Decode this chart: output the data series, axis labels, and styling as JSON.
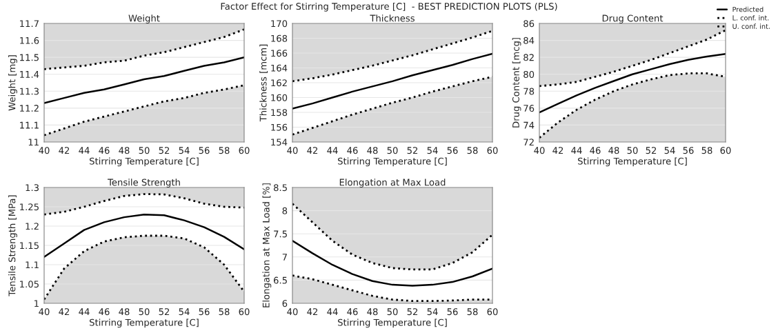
{
  "chart_data": [
    {
      "type": "line",
      "title": "Weight",
      "xlabel": "Stirring Temperature [C]",
      "ylabel": "Weight [mg]",
      "annotations": [
        "Factor Effect for Stirring Temperature [C]  - BEST PREDICTION PLOTS (PLS)"
      ],
      "legend": "top right",
      "grid": "y",
      "x": [
        40,
        42,
        44,
        46,
        48,
        50,
        52,
        54,
        56,
        58,
        60
      ],
      "xlim": [
        40,
        60
      ],
      "xticks": [
        40,
        42,
        44,
        46,
        48,
        50,
        52,
        54,
        56,
        58,
        60
      ],
      "ylim": [
        11,
        11.7
      ],
      "yticks": [
        11,
        11.1,
        11.2,
        11.3,
        11.4,
        11.5,
        11.6,
        11.7
      ],
      "series": [
        {
          "name": "Predicted",
          "color": "#000000",
          "line_style": "solid",
          "values": [
            11.23,
            11.26,
            11.29,
            11.31,
            11.34,
            11.37,
            11.39,
            11.42,
            11.45,
            11.47,
            11.5
          ],
          "lower": [
            11.04,
            11.08,
            11.12,
            11.15,
            11.18,
            11.21,
            11.24,
            11.26,
            11.29,
            11.31,
            11.335
          ],
          "upper": [
            11.43,
            11.44,
            11.45,
            11.47,
            11.48,
            11.51,
            11.53,
            11.56,
            11.59,
            11.62,
            11.665
          ]
        },
        {
          "name": "L. conf. int.",
          "color": "#000000",
          "line_style": "dotted",
          "values": [
            11.04,
            11.08,
            11.12,
            11.15,
            11.18,
            11.21,
            11.24,
            11.26,
            11.29,
            11.31,
            11.335
          ]
        },
        {
          "name": "U. conf. int.",
          "color": "#000000",
          "line_style": "dotted",
          "values": [
            11.43,
            11.44,
            11.45,
            11.47,
            11.48,
            11.51,
            11.53,
            11.56,
            11.59,
            11.62,
            11.665
          ]
        }
      ]
    },
    {
      "type": "line",
      "title": "Thickness",
      "xlabel": "Stirring Temperature [C]",
      "ylabel": "Thickness [mcm]",
      "grid": "y",
      "x": [
        40,
        42,
        44,
        46,
        48,
        50,
        52,
        54,
        56,
        58,
        60
      ],
      "xlim": [
        40,
        60
      ],
      "xticks": [
        40,
        42,
        44,
        46,
        48,
        50,
        52,
        54,
        56,
        58,
        60
      ],
      "ylim": [
        154,
        170
      ],
      "yticks": [
        154,
        156,
        158,
        160,
        162,
        164,
        166,
        168,
        170
      ],
      "series": [
        {
          "color": "#000000",
          "line_style": "solid",
          "values": [
            158.5,
            159.2,
            160.0,
            160.8,
            161.5,
            162.2,
            163.0,
            163.7,
            164.4,
            165.2,
            165.9
          ],
          "lower": [
            155.0,
            155.9,
            156.8,
            157.7,
            158.5,
            159.3,
            160.0,
            160.8,
            161.5,
            162.2,
            162.8
          ],
          "upper": [
            162.2,
            162.6,
            163.1,
            163.7,
            164.3,
            165.0,
            165.7,
            166.5,
            167.3,
            168.1,
            169.0
          ]
        },
        {
          "color": "#000000",
          "line_style": "dotted",
          "values": [
            155.0,
            155.9,
            156.8,
            157.7,
            158.5,
            159.3,
            160.0,
            160.8,
            161.5,
            162.2,
            162.8
          ]
        },
        {
          "color": "#000000",
          "line_style": "dotted",
          "values": [
            162.2,
            162.6,
            163.1,
            163.7,
            164.3,
            165.0,
            165.7,
            166.5,
            167.3,
            168.1,
            169.0
          ]
        }
      ]
    },
    {
      "type": "line",
      "title": "Drug Content",
      "xlabel": "Stirring Temperature [C]",
      "ylabel": "Drug Content [mcg]",
      "grid": "y",
      "x": [
        40,
        42,
        44,
        46,
        48,
        50,
        52,
        54,
        56,
        58,
        60
      ],
      "xlim": [
        40,
        60
      ],
      "xticks": [
        40,
        42,
        44,
        46,
        48,
        50,
        52,
        54,
        56,
        58,
        60
      ],
      "ylim": [
        72,
        86
      ],
      "yticks": [
        72,
        74,
        76,
        78,
        80,
        82,
        84,
        86
      ],
      "series": [
        {
          "color": "#000000",
          "line_style": "solid",
          "values": [
            75.5,
            76.5,
            77.5,
            78.4,
            79.2,
            80.0,
            80.6,
            81.2,
            81.7,
            82.1,
            82.4
          ],
          "lower": [
            72.5,
            74.3,
            75.8,
            77.0,
            78.0,
            78.8,
            79.4,
            79.9,
            80.1,
            80.1,
            79.7
          ],
          "upper": [
            78.6,
            78.8,
            79.1,
            79.7,
            80.3,
            81.0,
            81.7,
            82.5,
            83.3,
            84.1,
            85.2
          ]
        },
        {
          "color": "#000000",
          "line_style": "dotted",
          "values": [
            72.5,
            74.3,
            75.8,
            77.0,
            78.0,
            78.8,
            79.4,
            79.9,
            80.1,
            80.1,
            79.7
          ]
        },
        {
          "color": "#000000",
          "line_style": "dotted",
          "values": [
            78.6,
            78.8,
            79.1,
            79.7,
            80.3,
            81.0,
            81.7,
            82.5,
            83.3,
            84.1,
            85.2
          ]
        }
      ]
    },
    {
      "type": "line",
      "title": "Tensile Strength",
      "xlabel": "Stirring Temperature [C]",
      "ylabel": "Tensile Strength [MPa]",
      "grid": "y",
      "x": [
        40,
        42,
        44,
        46,
        48,
        50,
        52,
        54,
        56,
        58,
        60
      ],
      "xlim": [
        40,
        60
      ],
      "xticks": [
        40,
        42,
        44,
        46,
        48,
        50,
        52,
        54,
        56,
        58,
        60
      ],
      "ylim": [
        1,
        1.3
      ],
      "yticks": [
        1,
        1.05,
        1.1,
        1.15,
        1.2,
        1.25,
        1.3
      ],
      "series": [
        {
          "color": "#000000",
          "line_style": "solid",
          "values": [
            1.12,
            1.155,
            1.19,
            1.21,
            1.223,
            1.23,
            1.228,
            1.215,
            1.197,
            1.172,
            1.14
          ],
          "lower": [
            1.01,
            1.09,
            1.135,
            1.16,
            1.171,
            1.175,
            1.175,
            1.168,
            1.145,
            1.1,
            1.03
          ],
          "upper": [
            1.23,
            1.237,
            1.25,
            1.265,
            1.278,
            1.283,
            1.282,
            1.272,
            1.258,
            1.25,
            1.248
          ]
        },
        {
          "color": "#000000",
          "line_style": "dotted",
          "values": [
            1.01,
            1.09,
            1.135,
            1.16,
            1.171,
            1.175,
            1.175,
            1.168,
            1.145,
            1.1,
            1.03
          ]
        },
        {
          "color": "#000000",
          "line_style": "dotted",
          "values": [
            1.23,
            1.237,
            1.25,
            1.265,
            1.278,
            1.283,
            1.282,
            1.272,
            1.258,
            1.25,
            1.248
          ]
        }
      ]
    },
    {
      "type": "line",
      "title": "Elongation at Max Load",
      "xlabel": "Stirring Temperature [C]",
      "ylabel": "Elongation at Max Load [%]",
      "grid": "y",
      "x": [
        40,
        42,
        44,
        46,
        48,
        50,
        52,
        54,
        56,
        58,
        60
      ],
      "xlim": [
        40,
        60
      ],
      "xticks": [
        40,
        42,
        44,
        46,
        48,
        50,
        52,
        54,
        56,
        58,
        60
      ],
      "ylim": [
        6,
        8.5
      ],
      "yticks": [
        6,
        6.5,
        7,
        7.5,
        8,
        8.5
      ],
      "series": [
        {
          "color": "#000000",
          "line_style": "solid",
          "values": [
            7.35,
            7.08,
            6.83,
            6.63,
            6.48,
            6.4,
            6.38,
            6.4,
            6.46,
            6.58,
            6.75
          ],
          "lower": [
            6.6,
            6.52,
            6.4,
            6.28,
            6.16,
            6.08,
            6.05,
            6.05,
            6.06,
            6.08,
            6.08
          ],
          "upper": [
            8.15,
            7.75,
            7.35,
            7.05,
            6.87,
            6.76,
            6.73,
            6.73,
            6.87,
            7.1,
            7.48
          ]
        },
        {
          "color": "#000000",
          "line_style": "dotted",
          "values": [
            6.6,
            6.52,
            6.4,
            6.28,
            6.16,
            6.08,
            6.05,
            6.05,
            6.06,
            6.08,
            6.08
          ]
        },
        {
          "color": "#000000",
          "line_style": "dotted",
          "values": [
            8.15,
            7.75,
            7.35,
            7.05,
            6.87,
            6.76,
            6.73,
            6.73,
            6.87,
            7.1,
            7.48
          ]
        }
      ]
    }
  ]
}
